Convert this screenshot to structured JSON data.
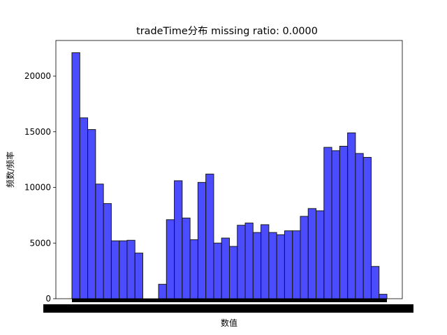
{
  "chart_data": {
    "type": "bar",
    "title": "tradeTime分布  missing ratio: 0.0000",
    "xlabel": "数值",
    "ylabel": "频数/频率",
    "ylim": [
      0,
      23200
    ],
    "yticks": [
      0,
      5000,
      10000,
      15000,
      20000
    ],
    "ytick_labels": [
      "0",
      "5000",
      "10000",
      "15000",
      "20000"
    ],
    "bar_color": "#0000ff",
    "bar_alpha": 0.7,
    "edge_color": "#1a1a1a",
    "values": [
      22100,
      16250,
      15200,
      10300,
      8550,
      5200,
      5200,
      5250,
      4100,
      0,
      0,
      1300,
      7100,
      10600,
      7250,
      5300,
      10450,
      11200,
      5000,
      5450,
      4700,
      6600,
      6800,
      5950,
      6650,
      5950,
      5750,
      6100,
      6100,
      7400,
      8100,
      7900,
      13600,
      13300,
      13700,
      14900,
      13050,
      12700,
      2900,
      400
    ]
  }
}
